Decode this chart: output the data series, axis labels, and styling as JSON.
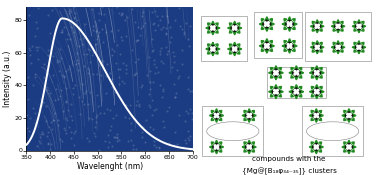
{
  "xlabel": "Wavelenght (nm)",
  "ylabel": "Intensity (a.u.)",
  "xlim": [
    350,
    700
  ],
  "ylim": [
    0,
    88
  ],
  "yticks": [
    0,
    20,
    40,
    60,
    80
  ],
  "xticks": [
    350,
    400,
    450,
    500,
    550,
    600,
    650,
    700
  ],
  "curve_color": "white",
  "bg_color": "#1b3c82",
  "annotation_text1": "compounds with the",
  "annotation_text2": "{Mg@[B₁₈φ₃₄₋₃₅]} clusters",
  "green": "#228B22",
  "dark": "#111111"
}
